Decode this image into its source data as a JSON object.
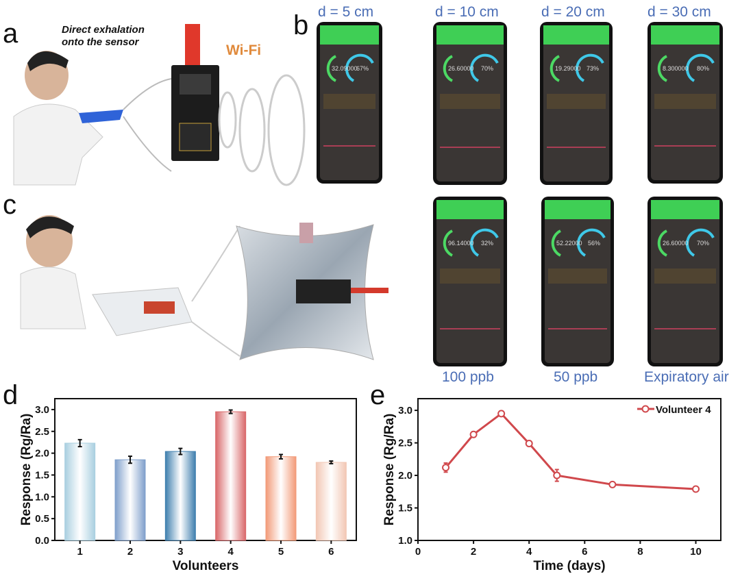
{
  "panels": {
    "a": {
      "label": "a",
      "caption": "Direct exhalation onto the sensor",
      "caption_lines": [
        "Direct exhalation",
        "onto the sensor"
      ],
      "wifi": "Wi-Fi"
    },
    "b": {
      "label": "b",
      "top_labels": [
        "d = 5 cm",
        "d = 10 cm",
        "d = 20 cm",
        "d = 30 cm"
      ],
      "bottom_labels": [
        "100 ppb",
        "50 ppb",
        "Expiratory air"
      ],
      "phones_top": [
        {
          "value": "32.09000",
          "humidity": "67%"
        },
        {
          "value": "26.60000",
          "humidity": "70%"
        },
        {
          "value": "19.29000",
          "humidity": "73%"
        },
        {
          "value": "8.300000",
          "humidity": "80%"
        }
      ],
      "phones_bottom": [
        {
          "value": "96.14000",
          "humidity": "32%"
        },
        {
          "value": "52.22000",
          "humidity": "56%"
        },
        {
          "value": "26.60000",
          "humidity": "70%"
        }
      ]
    },
    "c": {
      "label": "c"
    },
    "d": {
      "label": "d"
    },
    "e": {
      "label": "e"
    }
  },
  "chart_data": [
    {
      "type": "bar",
      "panel": "d",
      "categories": [
        "1",
        "2",
        "3",
        "4",
        "5",
        "6"
      ],
      "values": [
        2.23,
        1.85,
        2.04,
        2.95,
        1.92,
        1.79
      ],
      "errors": [
        0.08,
        0.08,
        0.07,
        0.04,
        0.05,
        0.03
      ],
      "colors": [
        "#a9cfe0",
        "#7f9fcb",
        "#3f7fae",
        "#d9686a",
        "#f29a78",
        "#f2c7b4"
      ],
      "xlabel": "Volunteers",
      "ylabel": "Response (Rg/Ra)",
      "ylim": [
        0,
        3.25
      ],
      "yticks": [
        "0.0",
        "0.5",
        "1.0",
        "1.5",
        "2.0",
        "2.5",
        "3.0"
      ],
      "grid": false
    },
    {
      "type": "line",
      "panel": "e",
      "series": [
        {
          "name": "Volunteer 4",
          "x": [
            1,
            2,
            3,
            4,
            5,
            7,
            10
          ],
          "y": [
            2.12,
            2.63,
            2.95,
            2.49,
            2.0,
            1.86,
            1.79
          ],
          "errors": [
            0.07,
            0.04,
            0.04,
            0.04,
            0.09,
            0.03,
            0.03
          ],
          "color": "#d0484c"
        }
      ],
      "xlabel": "Time (days)",
      "ylabel": "Response (Rg/Ra)",
      "xlim": [
        0,
        10.9
      ],
      "ylim": [
        1.0,
        3.18
      ],
      "xticks": [
        "0",
        "2",
        "4",
        "6",
        "8",
        "10"
      ],
      "yticks": [
        "1.0",
        "1.5",
        "2.0",
        "2.5",
        "3.0"
      ],
      "legend": "top-right",
      "grid": false
    }
  ]
}
